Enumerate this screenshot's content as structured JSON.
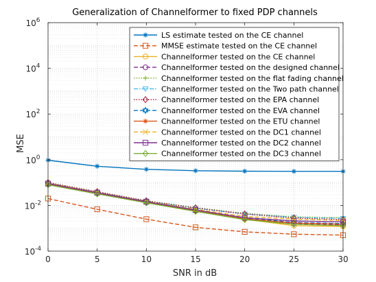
{
  "chart_data": {
    "type": "line",
    "title": "Generalization of Channelformer to fixed PDP channels",
    "xlabel": "SNR in dB",
    "ylabel": "MSE",
    "x": [
      0,
      5,
      10,
      15,
      20,
      25,
      30
    ],
    "xlim": [
      0,
      30
    ],
    "ylim": [
      0.0001,
      1000000
    ],
    "yscale": "log",
    "grid": true,
    "legend_position": "top-right",
    "x_ticks": [
      "0",
      "5",
      "10",
      "15",
      "20",
      "25",
      "30"
    ],
    "y_ticks": [
      {
        "base": "10",
        "exp": "-4",
        "value": 0.0001
      },
      {
        "base": "10",
        "exp": "-2",
        "value": 0.01
      },
      {
        "base": "10",
        "exp": "0",
        "value": 1
      },
      {
        "base": "10",
        "exp": "2",
        "value": 100
      },
      {
        "base": "10",
        "exp": "4",
        "value": 10000
      },
      {
        "base": "10",
        "exp": "6",
        "value": 1000000
      }
    ],
    "series": [
      {
        "name": "LS estimate tested on the CE channel",
        "color": "#0072BD",
        "dash": "solid",
        "marker": "asterisk",
        "values": [
          0.95,
          0.52,
          0.38,
          0.33,
          0.315,
          0.31,
          0.31
        ]
      },
      {
        "name": "MMSE estimate tested on the CE channel",
        "color": "#D95319",
        "dash": "dashed",
        "marker": "square",
        "values": [
          0.02,
          0.0068,
          0.0025,
          0.0011,
          0.0007,
          0.00055,
          0.0005
        ]
      },
      {
        "name": "Channelformer tested on the CE channel",
        "color": "#EDB120",
        "dash": "solid",
        "marker": "circle",
        "values": [
          0.085,
          0.033,
          0.0135,
          0.0057,
          0.0025,
          0.0013,
          0.0012
        ]
      },
      {
        "name": "Channelformer tested on the designed channel",
        "color": "#7E2F8E",
        "dash": "dashed",
        "marker": "circle",
        "values": [
          0.09,
          0.035,
          0.014,
          0.006,
          0.0027,
          0.0016,
          0.0014
        ]
      },
      {
        "name": "Channelformer tested on the flat fading channel",
        "color": "#77AC30",
        "dash": "dotted",
        "marker": "plus",
        "values": [
          0.1,
          0.04,
          0.016,
          0.008,
          0.0045,
          0.0032,
          0.0029
        ]
      },
      {
        "name": "Channelformer tested on the Two path channel",
        "color": "#4DBEEE",
        "dash": "dashdot",
        "marker": "triangle-down",
        "values": [
          0.095,
          0.038,
          0.0155,
          0.0075,
          0.0042,
          0.003,
          0.0027
        ]
      },
      {
        "name": "Channelformer tested on the EPA channel",
        "color": "#A2142F",
        "dash": "dotted",
        "marker": "diamond",
        "values": [
          0.1,
          0.04,
          0.016,
          0.0078,
          0.0042,
          0.0028,
          0.0024
        ]
      },
      {
        "name": "Channelformer tested on the EVA channel",
        "color": "#0072BD",
        "dash": "dashed",
        "marker": "hexagram",
        "values": [
          0.09,
          0.035,
          0.014,
          0.006,
          0.0029,
          0.0018,
          0.0016
        ]
      },
      {
        "name": "Channelformer tested on the ETU channel",
        "color": "#D95319",
        "dash": "solid",
        "marker": "asterisk",
        "values": [
          0.088,
          0.034,
          0.0138,
          0.0058,
          0.0026,
          0.0017,
          0.0015
        ]
      },
      {
        "name": "Channelformer tested on the DC1 channel",
        "color": "#EDB120",
        "dash": "dashed",
        "marker": "x",
        "values": [
          0.095,
          0.037,
          0.015,
          0.0068,
          0.0033,
          0.0025,
          0.0022
        ]
      },
      {
        "name": "Channelformer tested on the DC2 channel",
        "color": "#7E2F8E",
        "dash": "solid",
        "marker": "square",
        "values": [
          0.09,
          0.036,
          0.0145,
          0.0063,
          0.0029,
          0.0021,
          0.0019
        ]
      },
      {
        "name": "Channelformer tested on the DC3 channel",
        "color": "#77AC30",
        "dash": "solid",
        "marker": "diamond",
        "values": [
          0.08,
          0.032,
          0.013,
          0.0055,
          0.0024,
          0.0015,
          0.0013
        ]
      }
    ]
  }
}
